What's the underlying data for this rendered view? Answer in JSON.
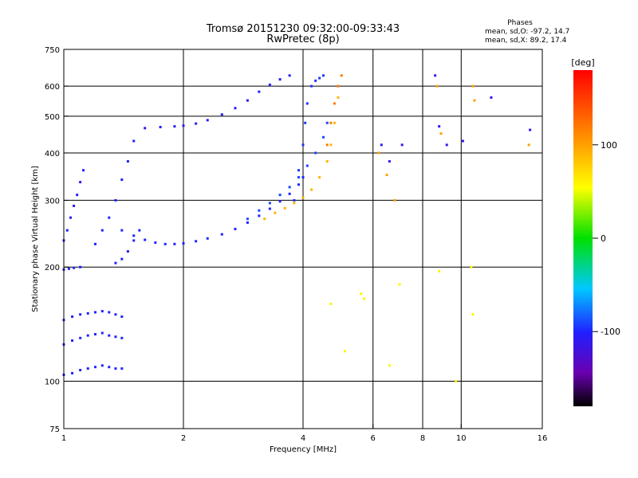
{
  "chart_data": {
    "type": "scatter",
    "title": "Tromsø 20151230 09:32:00-09:33:43",
    "subtitle": "RwPretec (8p)",
    "stats": {
      "heading": "Phases",
      "line_o": "mean, sd,O: -97.2, 14.7",
      "line_x": "mean, sd,X:  89.2, 17.4"
    },
    "xlabel": "Frequency [MHz]",
    "ylabel": "Stationary phase Virtual Height [km]",
    "x_scale": "log",
    "y_scale": "log",
    "xlim": [
      1,
      16
    ],
    "ylim": [
      75,
      750
    ],
    "x_ticks": [
      1,
      2,
      4,
      6,
      8,
      10,
      16
    ],
    "x_tick_labels": [
      "1",
      "2",
      "4",
      "6",
      "8",
      "10",
      "16"
    ],
    "y_ticks": [
      75,
      100,
      200,
      300,
      400,
      500,
      600,
      750
    ],
    "y_tick_labels": [
      "75",
      "100",
      "200",
      "300",
      "400",
      "500",
      "600",
      "750"
    ],
    "x_grid": [
      2,
      4,
      6,
      8,
      10
    ],
    "y_grid": [
      100,
      200,
      300,
      400,
      500,
      600
    ],
    "grid": true,
    "colorbar": {
      "label": "[deg]",
      "range": [
        -180,
        180
      ],
      "ticks": [
        100,
        0,
        -100
      ],
      "tick_labels": [
        "100",
        "0",
        "-100"
      ]
    },
    "series": [
      {
        "trace": "o-upper",
        "phase": -105,
        "x": [
          1.6,
          1.75,
          1.9,
          2.0,
          2.15,
          2.3,
          2.5,
          2.7,
          2.9,
          3.1,
          3.3,
          3.5,
          3.7
        ],
        "y": [
          465,
          468,
          470,
          472,
          478,
          488,
          505,
          525,
          550,
          580,
          605,
          625,
          640
        ]
      },
      {
        "trace": "o-upper-band",
        "phase": -95,
        "x": [
          3.8,
          3.9,
          4.0,
          4.05,
          4.1,
          4.2,
          4.3,
          4.4,
          4.5
        ],
        "y": [
          300,
          360,
          420,
          480,
          540,
          600,
          620,
          630,
          640
        ]
      },
      {
        "trace": "o-lower",
        "phase": -100,
        "x": [
          1.4,
          1.5,
          1.6,
          1.7,
          1.8,
          1.9,
          2.0,
          2.15,
          2.3,
          2.5,
          2.7,
          2.9,
          3.1,
          3.3,
          3.5,
          3.7,
          3.9,
          4.0
        ],
        "y": [
          250,
          242,
          236,
          232,
          230,
          230,
          231,
          234,
          238,
          244,
          252,
          262,
          273,
          285,
          298,
          312,
          330,
          345
        ]
      },
      {
        "trace": "o-lower-2",
        "phase": -90,
        "x": [
          2.9,
          3.1,
          3.3,
          3.5,
          3.7,
          3.9,
          4.1,
          4.3,
          4.5,
          4.6
        ],
        "y": [
          268,
          282,
          295,
          310,
          325,
          345,
          370,
          400,
          440,
          480
        ]
      },
      {
        "trace": "x-trace",
        "phase": 90,
        "x": [
          3.2,
          3.4,
          3.6,
          3.8,
          4.0,
          4.2,
          4.4,
          4.6,
          4.7,
          4.8,
          4.9
        ],
        "y": [
          268,
          278,
          286,
          295,
          305,
          320,
          345,
          380,
          420,
          480,
          560
        ]
      },
      {
        "trace": "x-upper",
        "phase": 120,
        "x": [
          4.6,
          4.7,
          4.8,
          4.9,
          5.0
        ],
        "y": [
          420,
          480,
          540,
          600,
          640
        ]
      },
      {
        "trace": "o-lowfreq-a",
        "phase": -105,
        "x": [
          1.0,
          1.02,
          1.04,
          1.06,
          1.08,
          1.1,
          1.12
        ],
        "y": [
          235,
          250,
          270,
          290,
          310,
          335,
          360
        ]
      },
      {
        "trace": "o-lowfreq-b",
        "phase": -100,
        "x": [
          1.0,
          1.03,
          1.06,
          1.1
        ],
        "y": [
          197,
          198,
          199,
          200
        ]
      },
      {
        "trace": "o-spread-c",
        "phase": -100,
        "x": [
          1.0,
          1.05,
          1.1,
          1.15,
          1.2,
          1.25,
          1.3,
          1.35,
          1.4
        ],
        "y": [
          104,
          105,
          107,
          108,
          109,
          110,
          109,
          108,
          108
        ]
      },
      {
        "trace": "o-spread-d",
        "phase": -100,
        "x": [
          1.0,
          1.05,
          1.1,
          1.15,
          1.2,
          1.25,
          1.3,
          1.35,
          1.4
        ],
        "y": [
          125,
          128,
          130,
          132,
          133,
          134,
          132,
          131,
          130
        ]
      },
      {
        "trace": "o-spread-e",
        "phase": -100,
        "x": [
          1.0,
          1.05,
          1.1,
          1.15,
          1.2,
          1.25,
          1.3,
          1.35,
          1.4
        ],
        "y": [
          145,
          148,
          150,
          151,
          152,
          153,
          152,
          150,
          148
        ]
      },
      {
        "trace": "o-spread-f",
        "phase": -100,
        "x": [
          1.2,
          1.25,
          1.3,
          1.35,
          1.4,
          1.45,
          1.5
        ],
        "y": [
          230,
          250,
          270,
          300,
          340,
          380,
          430
        ]
      },
      {
        "trace": "o-spread-g",
        "phase": -100,
        "x": [
          1.35,
          1.4,
          1.45,
          1.5,
          1.55
        ],
        "y": [
          205,
          210,
          220,
          235,
          250
        ]
      },
      {
        "trace": "scatter-hi",
        "phase": 100,
        "x": [
          6.2,
          6.5,
          6.8,
          8.7,
          8.9,
          10.7,
          10.8,
          14.8
        ],
        "y": [
          400,
          350,
          300,
          600,
          450,
          600,
          550,
          420
        ]
      },
      {
        "trace": "scatter-mix",
        "phase": -110,
        "x": [
          6.3,
          6.6,
          7.1,
          8.6,
          8.8,
          9.2,
          10.1,
          11.9,
          14.9
        ],
        "y": [
          420,
          380,
          420,
          640,
          470,
          420,
          430,
          560,
          460
        ]
      },
      {
        "trace": "scatter-low",
        "phase": 60,
        "x": [
          5.6,
          5.7,
          6.6,
          7.0,
          8.8,
          9.7,
          10.6,
          10.7,
          4.7,
          5.1
        ],
        "y": [
          170,
          165,
          110,
          180,
          195,
          100,
          200,
          150,
          160,
          120
        ]
      }
    ]
  }
}
